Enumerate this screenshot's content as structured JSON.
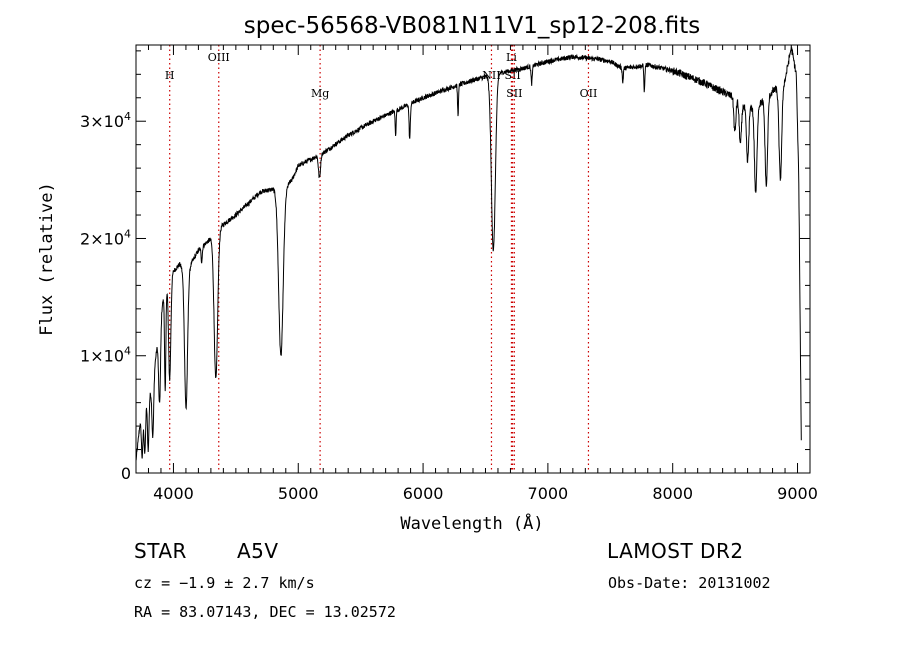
{
  "chart_data": {
    "type": "line",
    "title": "spec-56568-VB081N11V1_sp12-208.fits",
    "xlabel": "Wavelength (Å)",
    "ylabel": "Flux (relative)",
    "xlim": [
      3700,
      9100
    ],
    "ylim": [
      0,
      36500
    ],
    "x_ticks": [
      4000,
      5000,
      6000,
      7000,
      8000,
      9000
    ],
    "y_ticks": [
      {
        "value": 0,
        "mantissa": "0",
        "exponent": ""
      },
      {
        "value": 10000,
        "mantissa": "1×10",
        "exponent": "4"
      },
      {
        "value": 20000,
        "mantissa": "2×10",
        "exponent": "4"
      },
      {
        "value": 30000,
        "mantissa": "3×10",
        "exponent": "4"
      }
    ],
    "continuum": [
      [
        3700,
        1000
      ],
      [
        3730,
        4000
      ],
      [
        3780,
        6000
      ],
      [
        3820,
        7000
      ],
      [
        3860,
        10000
      ],
      [
        3900,
        14000
      ],
      [
        3950,
        16000
      ],
      [
        4000,
        17200
      ],
      [
        4050,
        17800
      ],
      [
        4100,
        17000
      ],
      [
        4150,
        18000
      ],
      [
        4200,
        19000
      ],
      [
        4300,
        20000
      ],
      [
        4400,
        21200
      ],
      [
        4500,
        22000
      ],
      [
        4600,
        23000
      ],
      [
        4700,
        24000
      ],
      [
        4800,
        24200
      ],
      [
        4870,
        24000
      ],
      [
        4950,
        25000
      ],
      [
        5000,
        26200
      ],
      [
        5200,
        27300
      ],
      [
        5400,
        28800
      ],
      [
        5600,
        30000
      ],
      [
        5800,
        31000
      ],
      [
        6000,
        32000
      ],
      [
        6200,
        32800
      ],
      [
        6400,
        33500
      ],
      [
        6600,
        34100
      ],
      [
        6800,
        34500
      ],
      [
        7000,
        35100
      ],
      [
        7200,
        35500
      ],
      [
        7400,
        35300
      ],
      [
        7500,
        35100
      ],
      [
        7600,
        34500
      ],
      [
        7800,
        34800
      ],
      [
        8000,
        34300
      ],
      [
        8200,
        33500
      ],
      [
        8400,
        32500
      ],
      [
        8500,
        32000
      ],
      [
        8600,
        31000
      ],
      [
        8700,
        31500
      ],
      [
        8800,
        32500
      ],
      [
        8900,
        33500
      ],
      [
        8950,
        36300
      ],
      [
        8990,
        34000
      ],
      [
        9010,
        25000
      ],
      [
        9030,
        3000
      ]
    ],
    "absorption_lines": [
      {
        "center": 3750,
        "depth": 3500,
        "width": 6
      },
      {
        "center": 3771,
        "depth": 4000,
        "width": 6
      },
      {
        "center": 3798,
        "depth": 4500,
        "width": 6
      },
      {
        "center": 3835,
        "depth": 5000,
        "width": 7
      },
      {
        "center": 3889,
        "depth": 7000,
        "width": 8
      },
      {
        "center": 3934,
        "depth": 8500,
        "width": 5
      },
      {
        "center": 3970,
        "depth": 8500,
        "width": 9
      },
      {
        "center": 4101,
        "depth": 11500,
        "width": 12
      },
      {
        "center": 4226,
        "depth": 1200,
        "width": 5
      },
      {
        "center": 4340,
        "depth": 12500,
        "width": 14
      },
      {
        "center": 4861,
        "depth": 14000,
        "width": 18
      },
      {
        "center": 5170,
        "depth": 2000,
        "width": 8
      },
      {
        "center": 5780,
        "depth": 2000,
        "width": 4
      },
      {
        "center": 5893,
        "depth": 3000,
        "width": 5
      },
      {
        "center": 6280,
        "depth": 2500,
        "width": 4
      },
      {
        "center": 6563,
        "depth": 15000,
        "width": 16
      },
      {
        "center": 6870,
        "depth": 1500,
        "width": 5
      },
      {
        "center": 7600,
        "depth": 1200,
        "width": 4
      },
      {
        "center": 7773,
        "depth": 2200,
        "width": 4
      },
      {
        "center": 8498,
        "depth": 3000,
        "width": 8
      },
      {
        "center": 8542,
        "depth": 3500,
        "width": 9
      },
      {
        "center": 8600,
        "depth": 4500,
        "width": 9
      },
      {
        "center": 8665,
        "depth": 7500,
        "width": 10
      },
      {
        "center": 8750,
        "depth": 7500,
        "width": 10
      },
      {
        "center": 8863,
        "depth": 8000,
        "width": 11
      }
    ],
    "marker_lines": [
      {
        "label": "H",
        "wavelength": 3970,
        "label_row": 3
      },
      {
        "label": "OIII",
        "wavelength": 4363,
        "label_row": 1
      },
      {
        "label": "Mg",
        "wavelength": 5175,
        "label_row": 4
      },
      {
        "label": "NII",
        "wavelength": 6548,
        "label_row": 3
      },
      {
        "label": "Li",
        "wavelength": 6708,
        "label_row": 1
      },
      {
        "label": "SII",
        "wavelength": 6717,
        "label_row": 3
      },
      {
        "label": "SII",
        "wavelength": 6731,
        "label_row": 4
      },
      {
        "label": "OII",
        "wavelength": 7325,
        "label_row": 4
      }
    ],
    "marker_color": "#cc0000",
    "grid": false,
    "legend": "none"
  },
  "info": {
    "class_label": "STAR",
    "subclass": "A5V",
    "survey": "LAMOST DR2",
    "cz": "cz = −1.9 ± 2.7 km/s",
    "obs_date": "Obs-Date: 20131002",
    "coords": "RA =  83.07143, DEC =  13.02572"
  }
}
